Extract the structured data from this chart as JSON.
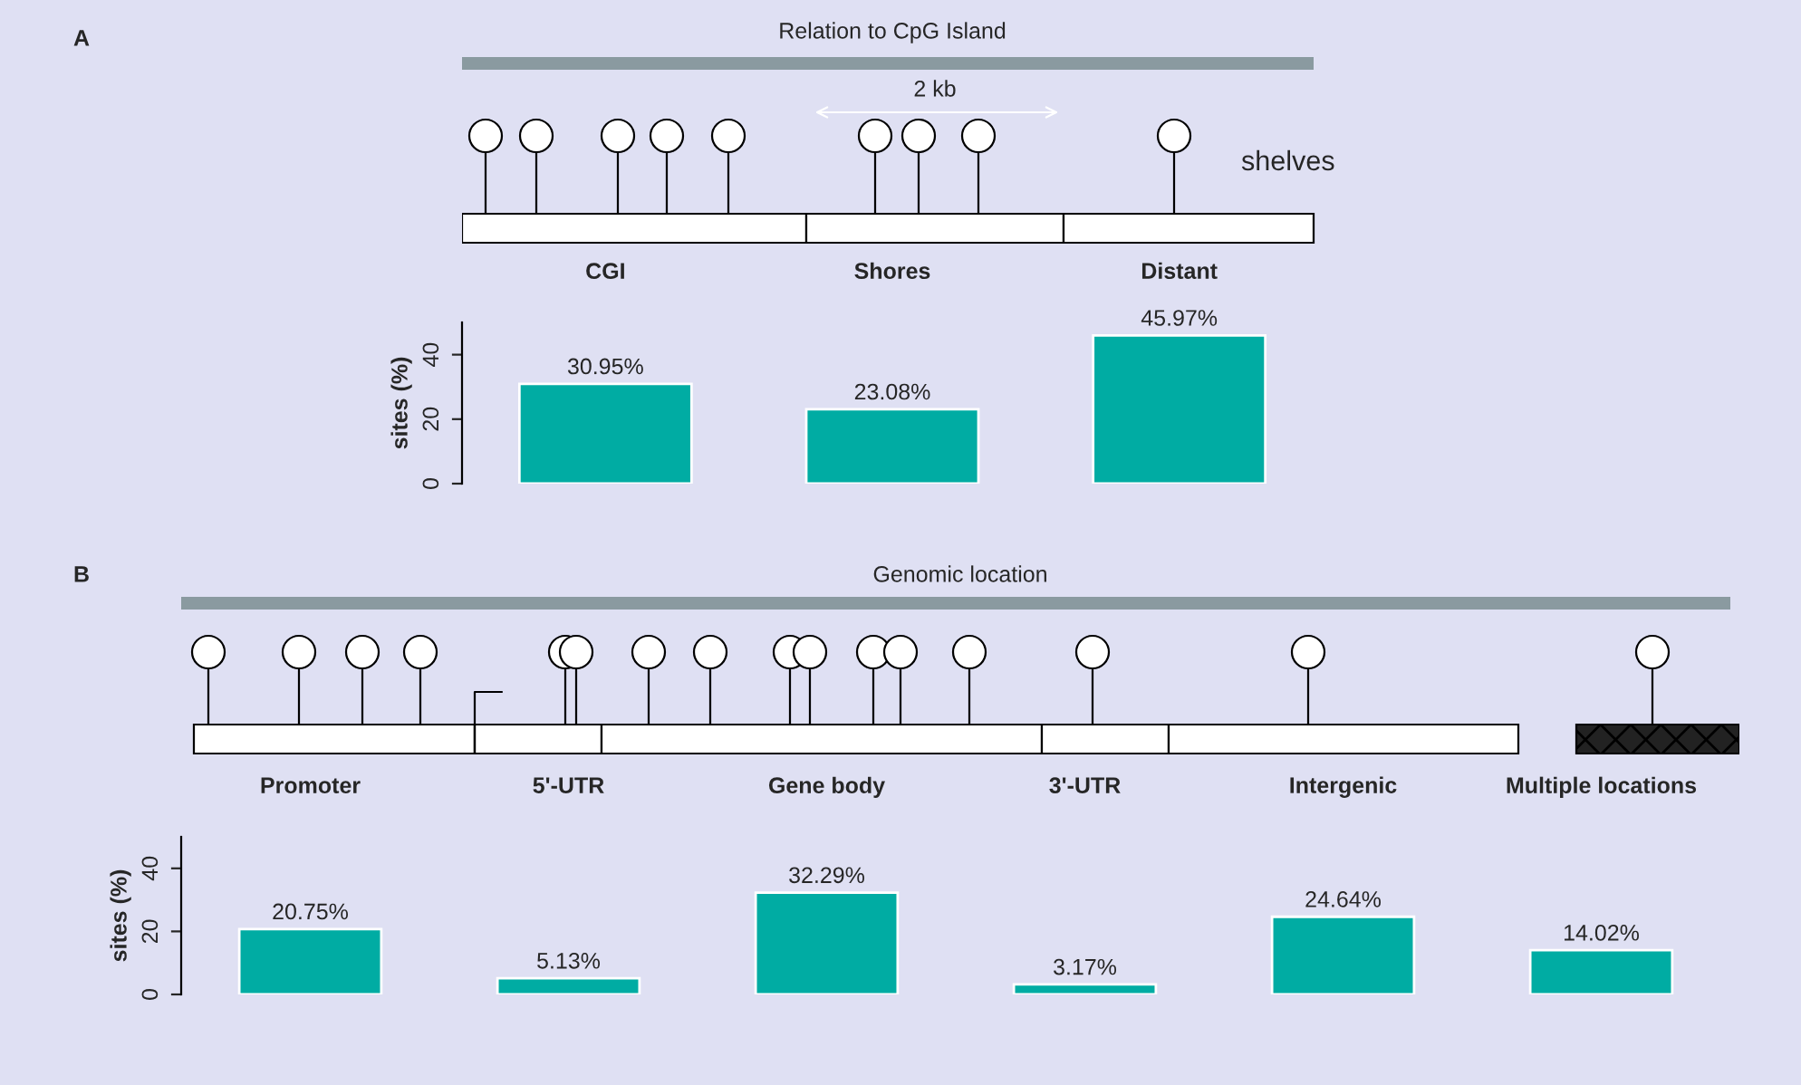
{
  "chart_data": [
    {
      "type": "bar",
      "title": "Relation to CpG Island",
      "ylabel": "sites (%)",
      "categories": [
        "CGI",
        "Shores",
        "Distant"
      ],
      "values": [
        30.95,
        23.08,
        45.97
      ],
      "color": "#00aca3",
      "value_labels": [
        "30.95%",
        "23.08%",
        "45.97%"
      ],
      "ylim": [
        0,
        50
      ],
      "yticks": [
        0,
        20,
        40
      ],
      "grid": false,
      "annotations": [
        "A",
        "2 kb",
        "shelves"
      ]
    },
    {
      "type": "bar",
      "title": "Genomic location",
      "ylabel": "sites (%)",
      "categories": [
        "Promoter",
        "5'-UTR",
        "Gene body",
        "3'-UTR",
        "Intergenic",
        "Multiple locations"
      ],
      "values": [
        20.75,
        5.13,
        32.29,
        3.17,
        24.64,
        14.02
      ],
      "color": "#00aca3",
      "value_labels": [
        "20.75%",
        "5.13%",
        "32.29%",
        "3.17%",
        "24.64%",
        "14.02%"
      ],
      "ylim": [
        0,
        50
      ],
      "yticks": [
        0,
        20,
        40
      ],
      "grid": false,
      "annotations": [
        "B"
      ]
    }
  ]
}
